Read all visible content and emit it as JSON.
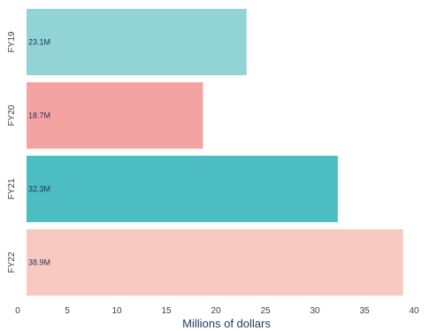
{
  "chart_data": {
    "type": "bar",
    "orientation": "horizontal",
    "title": "",
    "xlabel": "Millions of dollars",
    "ylabel": "",
    "xlim": [
      0,
      40
    ],
    "x_ticks": [
      0,
      5,
      10,
      15,
      20,
      25,
      30,
      35,
      40
    ],
    "grid": false,
    "legend": "none",
    "categories": [
      "FY19",
      "FY20",
      "FY21",
      "FY22"
    ],
    "values": [
      23.1,
      18.7,
      32.3,
      38.9
    ],
    "data_labels": [
      "23.1M",
      "18.7M",
      "32.3M",
      "38.9M"
    ],
    "colors": [
      "#92d4d6",
      "#f4a3a3",
      "#4bbdc3",
      "#f8c9c0"
    ]
  }
}
